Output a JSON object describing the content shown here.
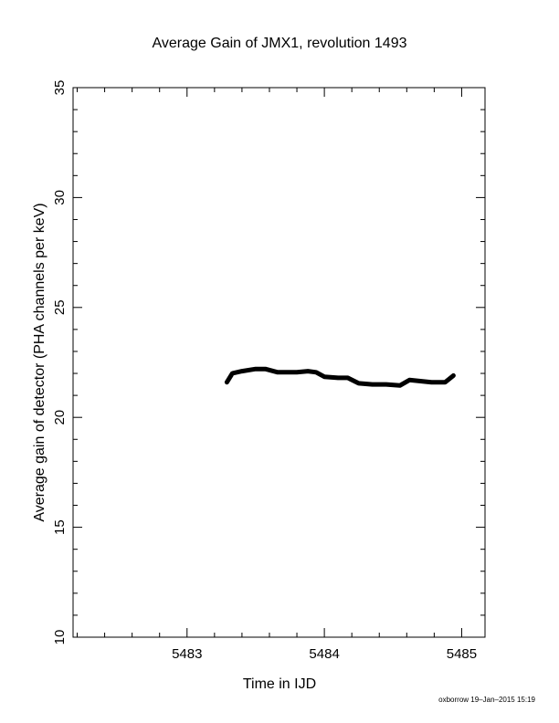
{
  "chart_data": {
    "type": "line",
    "title": "Average Gain of JMX1, revolution 1493",
    "xlabel": "Time in IJD",
    "ylabel": "Average gain of detector (PHA channels per keV)",
    "xlim": [
      5482.17,
      5485.17
    ],
    "ylim": [
      10,
      35
    ],
    "xticks": [
      5483,
      5484,
      5485
    ],
    "xtick_labels": [
      "5483",
      "5484",
      "5485"
    ],
    "yticks": [
      10,
      15,
      20,
      25,
      30,
      35
    ],
    "ytick_labels": [
      "10",
      "15",
      "20",
      "25",
      "30",
      "35"
    ],
    "grid": false,
    "series": [
      {
        "x": [
          5483.29,
          5483.33,
          5483.4,
          5483.5,
          5483.57,
          5483.66,
          5483.75,
          5483.8,
          5483.88,
          5483.94,
          5484.0,
          5484.1,
          5484.17,
          5484.25,
          5484.35,
          5484.45,
          5484.55,
          5484.62,
          5484.7,
          5484.78,
          5484.88,
          5484.94
        ],
        "values": [
          21.6,
          22.0,
          22.1,
          22.2,
          22.2,
          22.05,
          22.05,
          22.05,
          22.1,
          22.05,
          21.85,
          21.8,
          21.8,
          21.55,
          21.5,
          21.5,
          21.45,
          21.7,
          21.65,
          21.6,
          21.6,
          21.9
        ]
      }
    ]
  },
  "footer": "oxborrow 19–Jan–2015 15:19"
}
